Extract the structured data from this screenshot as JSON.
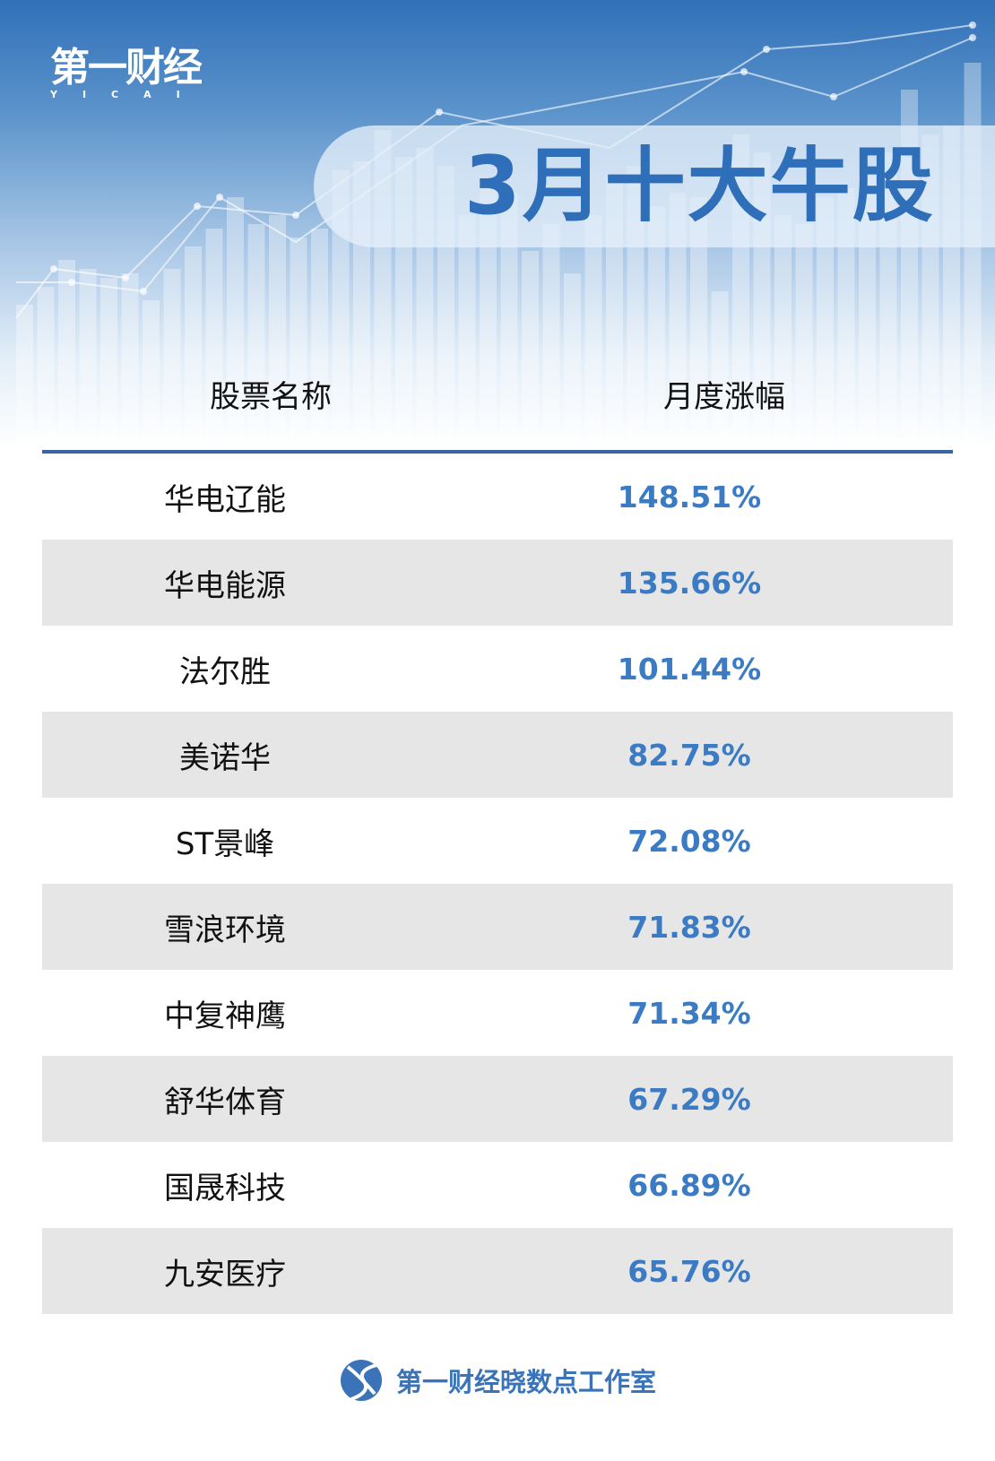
{
  "brand": {
    "logo_cn": "第一财经",
    "logo_en": "YICAI"
  },
  "title": "3月十大牛股",
  "table": {
    "headers": [
      "股票名称",
      "月度涨幅"
    ],
    "rows": [
      {
        "name": "华电辽能",
        "change": "148.51%"
      },
      {
        "name": "华电能源",
        "change": "135.66%"
      },
      {
        "name": "法尔胜",
        "change": "101.44%"
      },
      {
        "name": "美诺华",
        "change": "82.75%"
      },
      {
        "name": "ST景峰",
        "change": "72.08%"
      },
      {
        "name": "雪浪环境",
        "change": "71.83%"
      },
      {
        "name": "中复神鹰",
        "change": "71.34%"
      },
      {
        "name": "舒华体育",
        "change": "67.29%"
      },
      {
        "name": "国晟科技",
        "change": "66.89%"
      },
      {
        "name": "九安医疗",
        "change": "65.76%"
      }
    ]
  },
  "footer": {
    "text": "第一财经晓数点工作室",
    "icon": "yicai-studio-logo-icon"
  },
  "colors": {
    "accent": "#3a7bc4",
    "title": "#2f6fba",
    "header_line": "#3b64a0",
    "alt_row": "#e6e6e6"
  }
}
